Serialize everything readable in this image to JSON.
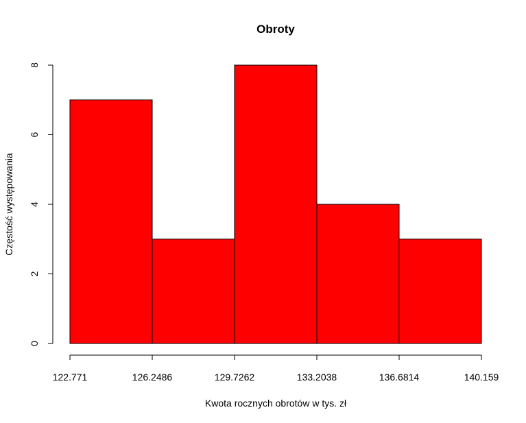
{
  "chart_data": {
    "type": "bar",
    "title": "Obroty",
    "xlabel": "Kwota rocznych obrotów w tys. zł",
    "ylabel": "Częstość występowania",
    "bin_edges": [
      122.771,
      126.2486,
      129.7262,
      133.2038,
      136.6814,
      140.159
    ],
    "x_tick_labels": [
      "122.771",
      "126.2486",
      "129.7262",
      "133.2038",
      "136.6814",
      "140.159"
    ],
    "values": [
      7,
      3,
      8,
      4,
      3
    ],
    "ylim": [
      0,
      8
    ],
    "y_ticks": [
      0,
      2,
      4,
      6,
      8
    ],
    "bar_color": "#ff0000",
    "grid": false,
    "legend": "none"
  }
}
